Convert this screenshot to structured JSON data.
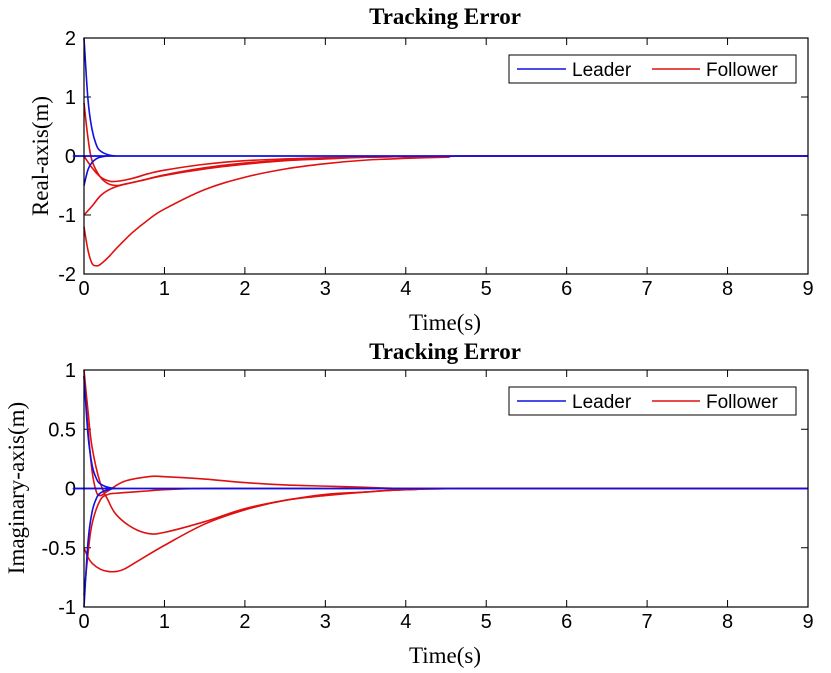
{
  "colors": {
    "leader": "#1010e0",
    "follower": "#e01010"
  },
  "chart_data": [
    {
      "type": "line",
      "title": "Tracking Error",
      "xlabel": "Time(s)",
      "ylabel": "Real-axis(m)",
      "xlim": [
        0,
        9
      ],
      "ylim": [
        -2,
        2
      ],
      "xticks": [
        0,
        1,
        2,
        3,
        4,
        5,
        6,
        7,
        8,
        9
      ],
      "yticks": [
        -2,
        -1,
        0,
        1,
        2
      ],
      "legend": {
        "position": "top-right",
        "entries": [
          "Leader",
          "Follower"
        ]
      },
      "series": [
        {
          "name": "Leader",
          "group": "leader",
          "x": [
            0,
            0.05,
            0.1,
            0.15,
            0.2,
            0.3,
            0.4,
            0.6,
            9
          ],
          "y": [
            2.0,
            0.95,
            0.45,
            0.2,
            0.09,
            0.02,
            0.0,
            0.0,
            0.0
          ]
        },
        {
          "name": "Leader",
          "group": "leader",
          "x": [
            0,
            0.05,
            0.1,
            0.15,
            0.2,
            0.3,
            0.4,
            0.6,
            9
          ],
          "y": [
            -0.5,
            -0.23,
            -0.11,
            -0.05,
            -0.02,
            0.0,
            0.0,
            0.0,
            0.0
          ]
        },
        {
          "name": "Follower",
          "group": "follower",
          "x": [
            0,
            0.05,
            0.1,
            0.15,
            0.2,
            0.3,
            0.4,
            0.6,
            0.8,
            1.0,
            1.5,
            2.0,
            2.5,
            3.0,
            3.5,
            4.0,
            4.5,
            5.0,
            9
          ],
          "y": [
            -1.2,
            -1.6,
            -1.82,
            -1.86,
            -1.84,
            -1.72,
            -1.57,
            -1.3,
            -1.08,
            -0.9,
            -0.57,
            -0.36,
            -0.22,
            -0.13,
            -0.07,
            -0.04,
            -0.02,
            0.0,
            0.0
          ]
        },
        {
          "name": "Follower",
          "group": "follower",
          "x": [
            0,
            0.1,
            0.2,
            0.3,
            0.4,
            0.5,
            0.7,
            1.0,
            1.5,
            2.0,
            2.5,
            3.0,
            3.5,
            4.0,
            5.0,
            9
          ],
          "y": [
            -1.0,
            -0.85,
            -0.68,
            -0.58,
            -0.52,
            -0.48,
            -0.42,
            -0.33,
            -0.22,
            -0.14,
            -0.08,
            -0.05,
            -0.02,
            -0.01,
            0.0,
            0.0
          ]
        },
        {
          "name": "Follower",
          "group": "follower",
          "x": [
            0,
            0.05,
            0.1,
            0.2,
            0.3,
            0.4,
            0.5,
            0.7,
            1.0,
            1.5,
            2.0,
            2.5,
            3.0,
            3.5,
            4.0,
            5.0,
            9
          ],
          "y": [
            0.9,
            0.3,
            -0.08,
            -0.35,
            -0.47,
            -0.5,
            -0.48,
            -0.42,
            -0.32,
            -0.2,
            -0.12,
            -0.07,
            -0.04,
            -0.02,
            -0.01,
            0.0,
            0.0
          ]
        },
        {
          "name": "Follower",
          "group": "follower",
          "x": [
            0,
            0.1,
            0.2,
            0.3,
            0.4,
            0.6,
            0.8,
            1.0,
            1.5,
            2.0,
            2.5,
            3.0,
            3.5,
            4.0,
            5.0,
            9
          ],
          "y": [
            0.0,
            -0.2,
            -0.35,
            -0.42,
            -0.43,
            -0.38,
            -0.3,
            -0.24,
            -0.14,
            -0.08,
            -0.05,
            -0.03,
            -0.02,
            -0.01,
            0.0,
            0.0
          ]
        }
      ]
    },
    {
      "type": "line",
      "title": "Tracking Error",
      "xlabel": "Time(s)",
      "ylabel": "Imaginary-axis(m)",
      "xlim": [
        0,
        9
      ],
      "ylim": [
        -1,
        1
      ],
      "xticks": [
        0,
        1,
        2,
        3,
        4,
        5,
        6,
        7,
        8,
        9
      ],
      "yticks": [
        -1,
        -0.5,
        0,
        0.5,
        1
      ],
      "legend": {
        "position": "top-right",
        "entries": [
          "Leader",
          "Follower"
        ]
      },
      "series": [
        {
          "name": "Leader",
          "group": "leader",
          "x": [
            0,
            0.05,
            0.1,
            0.15,
            0.2,
            0.3,
            0.4,
            0.6,
            9
          ],
          "y": [
            0.95,
            0.45,
            0.2,
            0.09,
            0.04,
            0.01,
            0.0,
            0.0,
            0.0
          ]
        },
        {
          "name": "Leader",
          "group": "leader",
          "x": [
            0,
            0.05,
            0.1,
            0.15,
            0.2,
            0.3,
            0.4,
            0.6,
            9
          ],
          "y": [
            -1.0,
            -0.45,
            -0.2,
            -0.09,
            -0.04,
            -0.01,
            0.0,
            0.0,
            0.0
          ]
        },
        {
          "name": "Follower",
          "group": "follower",
          "x": [
            0,
            0.05,
            0.1,
            0.2,
            0.3,
            0.4,
            0.6,
            0.8,
            1.0,
            1.5,
            2.0,
            2.5,
            3.0,
            3.5,
            4.0,
            5.0,
            9
          ],
          "y": [
            1.0,
            0.65,
            0.35,
            0.05,
            -0.1,
            -0.22,
            -0.33,
            -0.38,
            -0.37,
            -0.28,
            -0.17,
            -0.1,
            -0.05,
            -0.03,
            -0.01,
            0.0,
            0.0
          ]
        },
        {
          "name": "Follower",
          "group": "follower",
          "x": [
            0,
            0.05,
            0.1,
            0.2,
            0.3,
            0.4,
            0.5,
            0.7,
            1.0,
            1.5,
            2.0,
            2.5,
            3.0,
            3.5,
            4.0,
            5.0,
            9
          ],
          "y": [
            -0.5,
            -0.58,
            -0.63,
            -0.68,
            -0.7,
            -0.7,
            -0.68,
            -0.6,
            -0.48,
            -0.3,
            -0.18,
            -0.1,
            -0.06,
            -0.03,
            -0.01,
            0.0,
            0.0
          ]
        },
        {
          "name": "Follower",
          "group": "follower",
          "x": [
            0,
            0.05,
            0.1,
            0.15,
            0.2,
            0.3,
            0.5,
            0.8,
            1.0,
            1.5,
            2.0,
            2.5,
            3.0,
            3.5,
            4.0,
            5.0,
            9
          ],
          "y": [
            0.95,
            0.5,
            0.15,
            -0.02,
            -0.06,
            -0.02,
            0.06,
            0.1,
            0.1,
            0.08,
            0.05,
            0.03,
            0.02,
            0.01,
            0.0,
            0.0,
            0.0
          ]
        },
        {
          "name": "Follower",
          "group": "follower",
          "x": [
            0,
            0.05,
            0.1,
            0.2,
            0.3,
            0.4,
            0.6,
            0.8,
            1.0,
            1.5,
            2.0,
            2.5,
            3.0,
            3.5,
            4.0,
            5.0,
            9
          ],
          "y": [
            -0.9,
            -0.55,
            -0.3,
            -0.1,
            -0.05,
            -0.04,
            -0.03,
            -0.02,
            -0.01,
            0.0,
            0.0,
            0.0,
            0.0,
            0.0,
            0.0,
            0.0,
            0.0
          ]
        }
      ]
    }
  ]
}
